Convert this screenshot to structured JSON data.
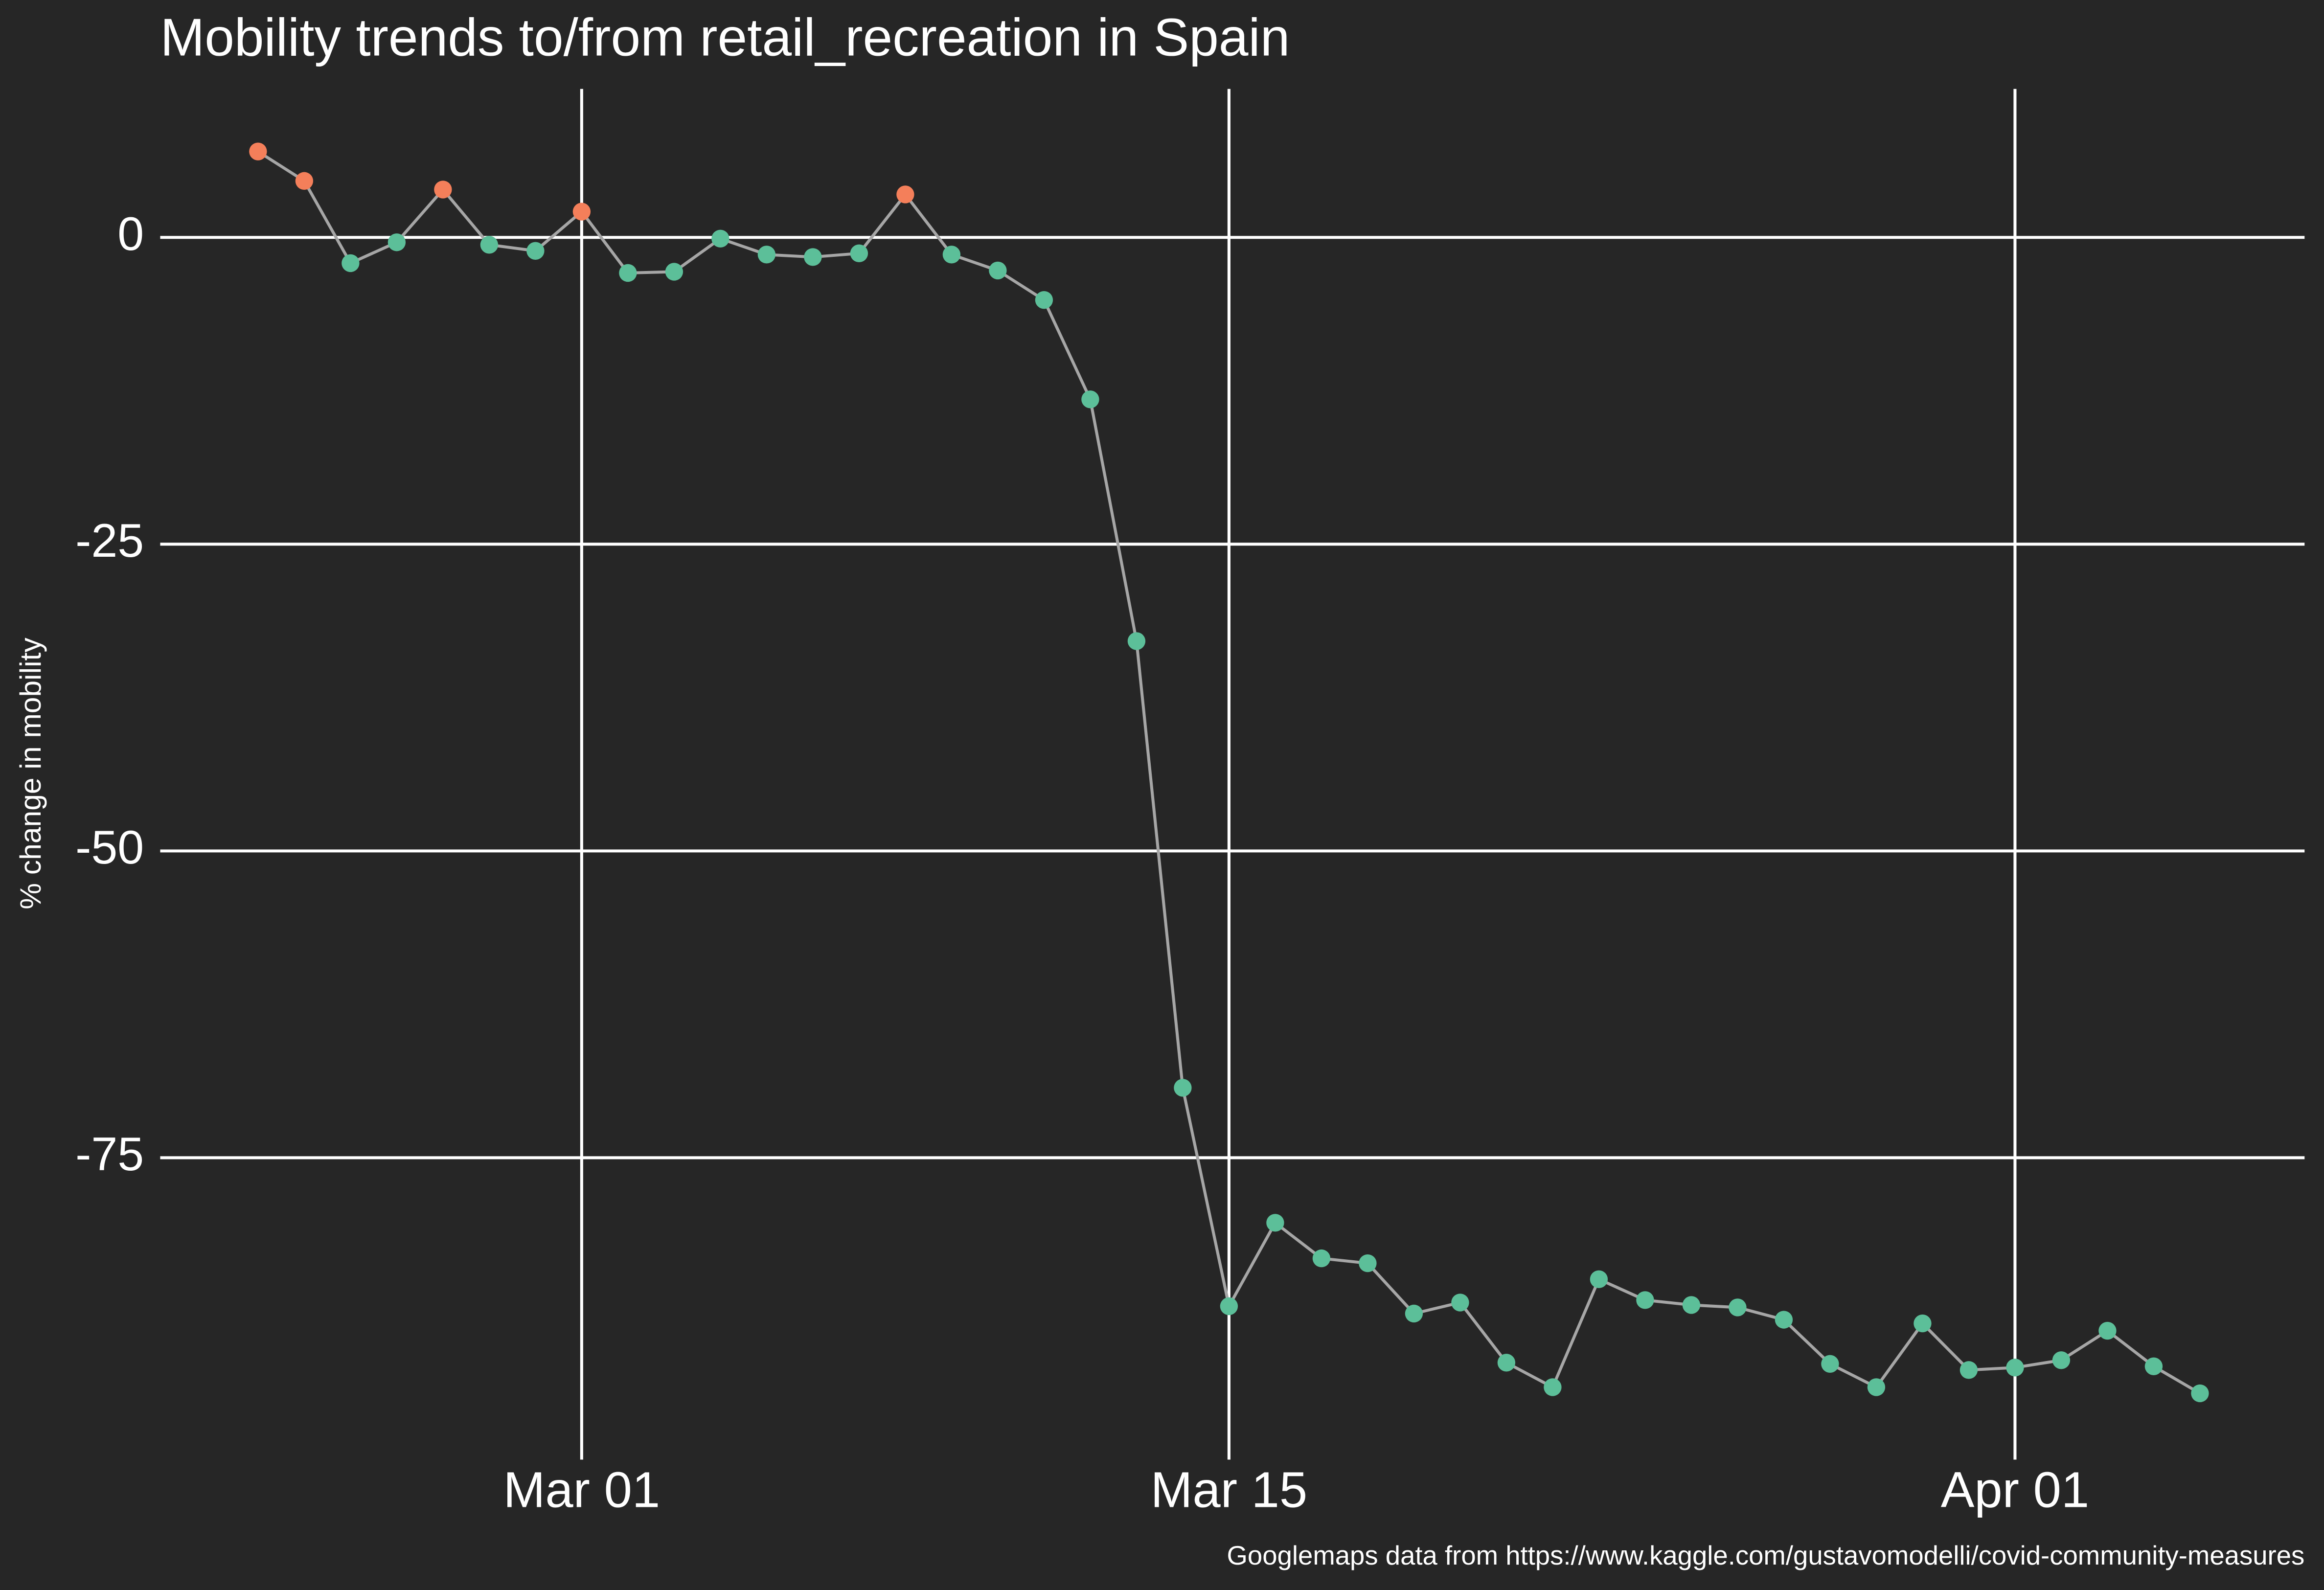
{
  "chart_data": {
    "type": "line",
    "title": "Mobility trends to/from retail_recreation in Spain",
    "y_label": "% change in mobility",
    "caption": "Googlemaps data from https://www.kaggle.com/gustavomodelli/covid-community-measures",
    "x": [
      "Feb 23",
      "Feb 24",
      "Feb 25",
      "Feb 26",
      "Feb 27",
      "Feb 28",
      "Feb 29",
      "Mar 01",
      "Mar 02",
      "Mar 03",
      "Mar 04",
      "Mar 05",
      "Mar 06",
      "Mar 07",
      "Mar 08",
      "Mar 09",
      "Mar 10",
      "Mar 11",
      "Mar 12",
      "Mar 13",
      "Mar 14",
      "Mar 15",
      "Mar 16",
      "Mar 17",
      "Mar 18",
      "Mar 19",
      "Mar 20",
      "Mar 21",
      "Mar 22",
      "Mar 23",
      "Mar 24",
      "Mar 25",
      "Mar 26",
      "Mar 27",
      "Mar 28",
      "Mar 29",
      "Mar 30",
      "Mar 31",
      "Apr 01",
      "Apr 02",
      "Apr 03",
      "Apr 04",
      "Apr 05"
    ],
    "series": [
      {
        "color": "#a6a6a6",
        "values": [
          7.0,
          4.6,
          -2.1,
          -0.4,
          3.9,
          -0.6,
          -1.1,
          2.1,
          -2.9,
          -2.8,
          -0.1,
          -1.4,
          -1.6,
          -1.3,
          3.5,
          -1.4,
          -2.7,
          -5.1,
          -13.2,
          -32.9,
          -69.3,
          -87.1,
          -80.3,
          -83.2,
          -83.6,
          -87.7,
          -86.8,
          -91.7,
          -93.7,
          -84.9,
          -86.6,
          -87.0,
          -87.2,
          -88.2,
          -91.8,
          -93.7,
          -88.5,
          -92.3,
          -92.1,
          -91.5,
          -89.1,
          -92.0,
          -94.2
        ]
      }
    ],
    "positive_color": "#f47f5a",
    "negative_color": "#5cbf99",
    "xticks": [
      "Mar 01",
      "Mar 15",
      "Apr 01"
    ],
    "ylim": [
      -99.6,
      12.1
    ],
    "yticks": [
      -75,
      -50,
      -25,
      0
    ],
    "grid": true
  }
}
